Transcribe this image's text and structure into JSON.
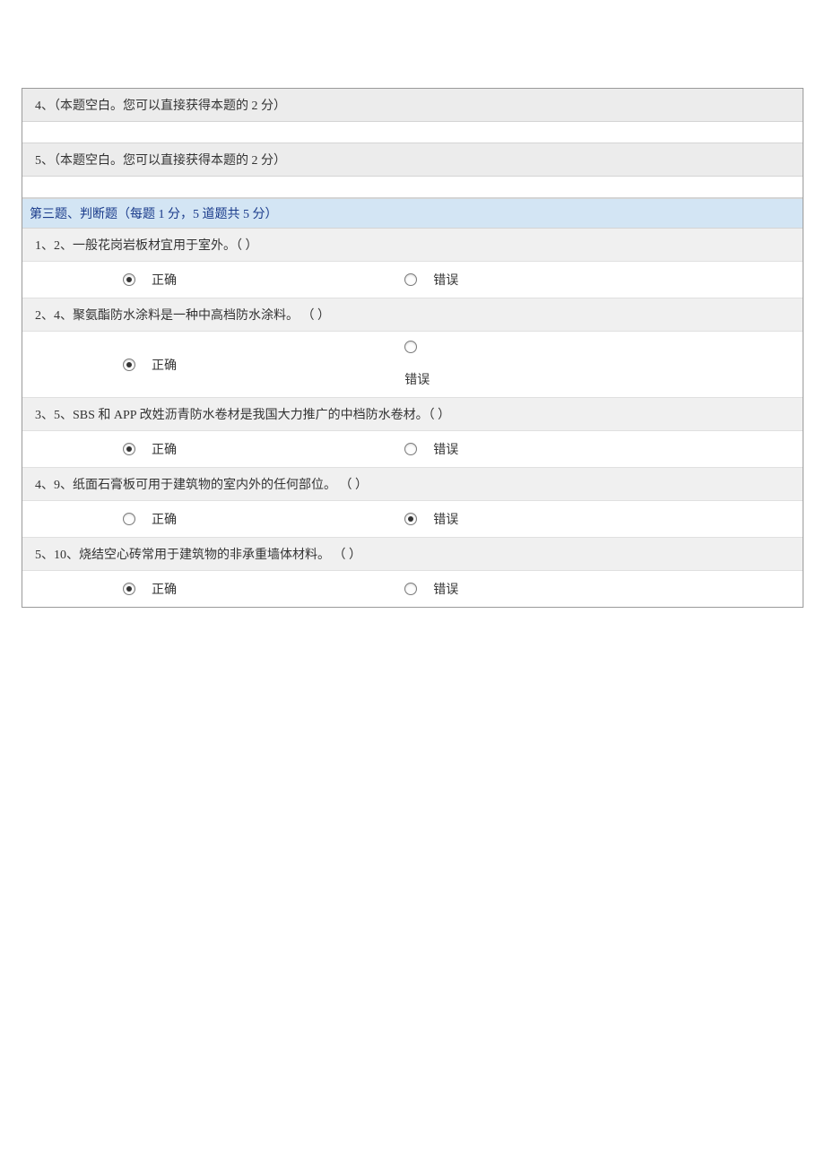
{
  "colors": {
    "page_bg": "#ffffff",
    "table_border": "#9a9a9a",
    "row_border": "#d4d4d4",
    "option_border": "#e0e0e0",
    "blank_q_bg": "#ececec",
    "section_bg": "#d3e5f4",
    "section_text": "#1a3b8b",
    "q_head_bg": "#f0f0f0",
    "text": "#333333",
    "radio_border": "#7a7a7a",
    "radio_dot": "#333333"
  },
  "typography": {
    "font_family": "SimSun",
    "base_fontsize": 14
  },
  "blank_questions": [
    {
      "text": "4、（本题空白。您可以直接获得本题的 2 分）"
    },
    {
      "text": "5、（本题空白。您可以直接获得本题的 2 分）"
    }
  ],
  "section": {
    "title": "第三题、判断题（每题 1 分，5 道题共 5 分）"
  },
  "tf_labels": {
    "true": "正确",
    "false": "错误"
  },
  "tf_questions": [
    {
      "text": "1、2、一般花岗岩板材宜用于室外。（  ）",
      "selected": "true",
      "false_stacked": false
    },
    {
      "text": "2、4、聚氨酯防水涂料是一种中高档防水涂料。 （  ）",
      "selected": "true",
      "false_stacked": true
    },
    {
      "text": "3、5、SBS 和 APP 改姓沥青防水卷材是我国大力推广的中档防水卷材。（  ）",
      "selected": "true",
      "false_stacked": false
    },
    {
      "text": "4、9、纸面石膏板可用于建筑物的室内外的任何部位。 （  ）",
      "selected": "false",
      "false_stacked": false
    },
    {
      "text": "5、10、烧结空心砖常用于建筑物的非承重墙体材料。 （  ）",
      "selected": "true",
      "false_stacked": false
    }
  ]
}
